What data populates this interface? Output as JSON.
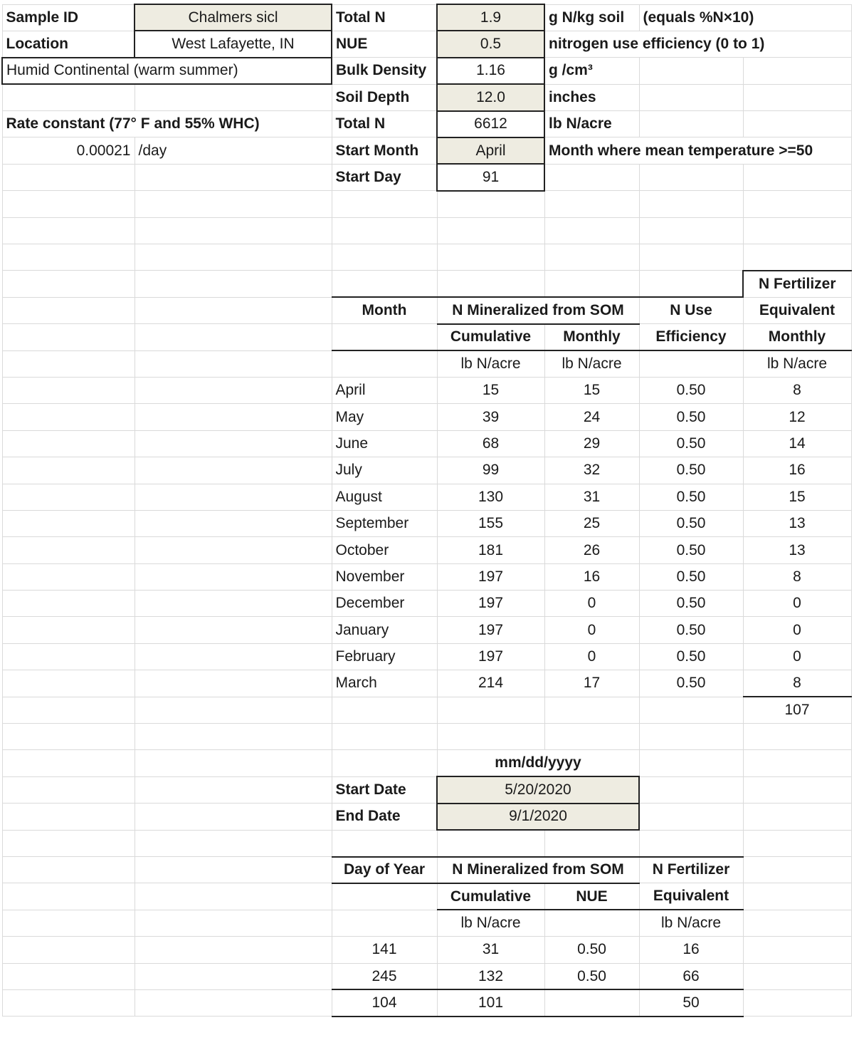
{
  "header": {
    "sample_id_label": "Sample ID",
    "sample_id": "Chalmers sicl",
    "location_label": "Location",
    "location": "West Lafayette, IN",
    "climate": "Humid Continental (warm summer)",
    "rate_label": "Rate constant (77° F and 55% WHC)",
    "rate_value": "0.00021",
    "rate_unit": "/day"
  },
  "params": [
    {
      "label": "Total N",
      "value": "1.9",
      "unit": "g N/kg soil",
      "note": "(equals %N×10)"
    },
    {
      "label": "NUE",
      "value": "0.5",
      "unit": "nitrogen use efficiency (0 to 1)"
    },
    {
      "label": "Bulk Density",
      "value": "1.16",
      "unit": "g /cm³"
    },
    {
      "label": "Soil Depth",
      "value": "12.0",
      "unit": "inches"
    },
    {
      "label": "Total N",
      "value": "6612",
      "unit": "lb N/acre"
    },
    {
      "label": "Start Month",
      "value": "April",
      "unit": "Month where mean temperature >=50"
    },
    {
      "label": "Start Day",
      "value": "91"
    }
  ],
  "monthly_table": {
    "h_fertilizer": "N Fertilizer",
    "h_month": "Month",
    "h_mineralized": "N Mineralized from SOM",
    "h_nuse": "N Use",
    "h_equivalent": "Equivalent",
    "h_cumulative": "Cumulative",
    "h_monthly": "Monthly",
    "h_efficiency": "Efficiency",
    "h_monthly2": "Monthly",
    "unit": "lb N/acre",
    "rows": [
      {
        "month": "April",
        "cumulative": "15",
        "monthly": "15",
        "nue": "0.50",
        "fert": "8"
      },
      {
        "month": "May",
        "cumulative": "39",
        "monthly": "24",
        "nue": "0.50",
        "fert": "12"
      },
      {
        "month": "June",
        "cumulative": "68",
        "monthly": "29",
        "nue": "0.50",
        "fert": "14"
      },
      {
        "month": "July",
        "cumulative": "99",
        "monthly": "32",
        "nue": "0.50",
        "fert": "16"
      },
      {
        "month": "August",
        "cumulative": "130",
        "monthly": "31",
        "nue": "0.50",
        "fert": "15"
      },
      {
        "month": "September",
        "cumulative": "155",
        "monthly": "25",
        "nue": "0.50",
        "fert": "13"
      },
      {
        "month": "October",
        "cumulative": "181",
        "monthly": "26",
        "nue": "0.50",
        "fert": "13"
      },
      {
        "month": "November",
        "cumulative": "197",
        "monthly": "16",
        "nue": "0.50",
        "fert": "8"
      },
      {
        "month": "December",
        "cumulative": "197",
        "monthly": "0",
        "nue": "0.50",
        "fert": "0"
      },
      {
        "month": "January",
        "cumulative": "197",
        "monthly": "0",
        "nue": "0.50",
        "fert": "0"
      },
      {
        "month": "February",
        "cumulative": "197",
        "monthly": "0",
        "nue": "0.50",
        "fert": "0"
      },
      {
        "month": "March",
        "cumulative": "214",
        "monthly": "17",
        "nue": "0.50",
        "fert": "8"
      }
    ],
    "total_fert": "107"
  },
  "dates": {
    "format_label": "mm/dd/yyyy",
    "start_label": "Start Date",
    "start": "5/20/2020",
    "end_label": "End Date",
    "end": "9/1/2020"
  },
  "doy_table": {
    "h_doy": "Day of Year",
    "h_mineralized": "N Mineralized from SOM",
    "h_fertilizer": "N Fertilizer",
    "h_cumulative": "Cumulative",
    "h_nue": "NUE",
    "h_equivalent": "Equivalent",
    "unit": "lb N/acre",
    "rows": [
      {
        "doy": "141",
        "cumulative": "31",
        "nue": "0.50",
        "fert": "16"
      },
      {
        "doy": "245",
        "cumulative": "132",
        "nue": "0.50",
        "fert": "66"
      }
    ],
    "total": {
      "doy": "104",
      "cumulative": "101",
      "fert": "50"
    }
  }
}
